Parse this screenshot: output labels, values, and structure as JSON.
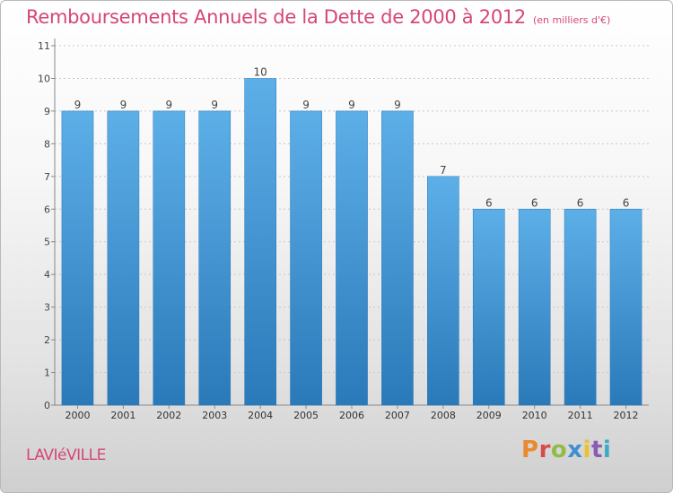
{
  "header": {
    "title": "Remboursements Annuels de la Dette de 2000 à 2012",
    "subtitle": "(en milliers d'€)"
  },
  "footer": {
    "commune": "LAVIéVILLE",
    "logo_text": "Proxiti"
  },
  "colors": {
    "title": "#d6457a",
    "bar_light": "#5dafe8",
    "bar_dark": "#2a79b9",
    "logo": [
      "#e98a2e",
      "#d94a4a",
      "#8fbc45",
      "#3d8fd0",
      "#e9c22e",
      "#8b5bb5",
      "#3fa9c8"
    ]
  },
  "chart_data": {
    "type": "bar",
    "title": "Remboursements Annuels de la Dette de 2000 à 2012",
    "subtitle": "(en milliers d'€)",
    "categories": [
      "2000",
      "2001",
      "2002",
      "2003",
      "2004",
      "2005",
      "2006",
      "2007",
      "2008",
      "2009",
      "2010",
      "2011",
      "2012"
    ],
    "values": [
      9,
      9,
      9,
      9,
      10,
      9,
      9,
      9,
      7,
      6,
      6,
      6,
      6
    ],
    "data_labels": [
      "9",
      "9",
      "9",
      "9",
      "10",
      "9",
      "9",
      "9",
      "7",
      "6",
      "6",
      "6",
      "6"
    ],
    "yticks": [
      0,
      1,
      2,
      3,
      4,
      5,
      6,
      7,
      8,
      9,
      10,
      11
    ],
    "ylim": [
      0,
      11
    ],
    "xlabel": "",
    "ylabel": "",
    "grid": true,
    "legend": "none"
  }
}
